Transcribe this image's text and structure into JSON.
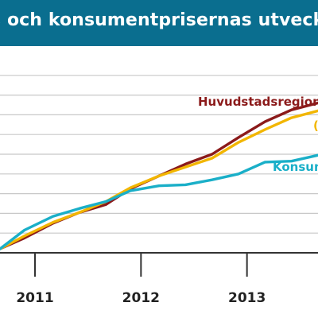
{
  "title": "s och konsumentprisernas utveckling",
  "colors": {
    "title_bg": "#0a6e8f",
    "title_text": "#ffffff",
    "grid": "#c8c8c8",
    "axis": "#333333"
  },
  "chart_data": {
    "type": "line",
    "title": "s och konsumentprisernas utveckling",
    "xlabel": "",
    "ylabel": "",
    "x_tick_labels": [
      "2011",
      "2012",
      "2013"
    ],
    "x_tick_values": [
      2011.0,
      2012.0,
      2013.0
    ],
    "xlim": [
      2010.67,
      2013.67
    ],
    "ylim": [
      0,
      10
    ],
    "y_gridlines": [
      0,
      1,
      2,
      3,
      4,
      5,
      6,
      7,
      8,
      9
    ],
    "y_tick_labels_visible": false,
    "grid": true,
    "legend": "none (series labelled inline)",
    "series": [
      {
        "name": "Huvudstadsregionen",
        "color": "#8b1a1a",
        "label_text": "Huvudstadsregionen",
        "x": [
          2010.67,
          2010.9,
          2011.17,
          2011.42,
          2011.67,
          2011.9,
          2012.17,
          2012.42,
          2012.67,
          2012.92,
          2013.17,
          2013.42,
          2013.67
        ],
        "values": [
          0.2,
          0.75,
          1.5,
          2.05,
          2.45,
          3.25,
          3.9,
          4.5,
          5.0,
          5.85,
          6.65,
          7.25,
          7.6
        ]
      },
      {
        "name": "",
        "color": "#f2b600",
        "label_text": "(",
        "x": [
          2010.67,
          2010.9,
          2011.17,
          2011.42,
          2011.67,
          2011.9,
          2012.17,
          2012.42,
          2012.67,
          2012.92,
          2013.17,
          2013.42,
          2013.67
        ],
        "values": [
          0.2,
          0.85,
          1.55,
          2.05,
          2.6,
          3.3,
          3.9,
          4.35,
          4.8,
          5.6,
          6.25,
          6.85,
          7.2
        ]
      },
      {
        "name": "Konsum",
        "color": "#1aafc8",
        "label_text": "Konsum",
        "x": [
          2010.67,
          2010.9,
          2011.17,
          2011.42,
          2011.67,
          2011.9,
          2012.17,
          2012.42,
          2012.67,
          2012.92,
          2013.17,
          2013.42,
          2013.67
        ],
        "values": [
          0.2,
          1.15,
          1.85,
          2.25,
          2.6,
          3.15,
          3.4,
          3.45,
          3.7,
          4.0,
          4.6,
          4.65,
          4.95
        ]
      }
    ]
  }
}
